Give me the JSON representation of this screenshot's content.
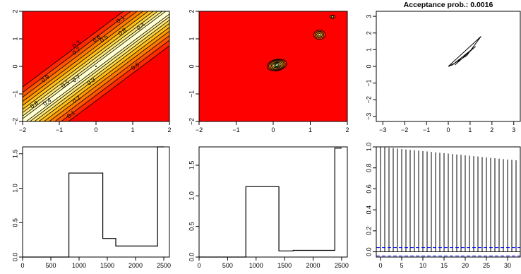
{
  "chart_data": [
    {
      "type": "contour",
      "panel": "top-left",
      "xlim": [
        -2,
        2
      ],
      "ylim": [
        -2,
        2
      ],
      "x_ticks": [
        "−2",
        "−1",
        "0",
        "1",
        "2"
      ],
      "y_ticks": [
        "−2",
        "−1",
        "0",
        "1",
        "2"
      ],
      "levels_upper": [
        "0.1",
        "0.3",
        "0.6",
        "0.5",
        "0.8",
        "0.4"
      ],
      "levels_band_upper": [
        "0.7"
      ],
      "levels_band_lower": [
        "0.9",
        "0.6",
        "0.7"
      ],
      "levels_lower": [
        "0.8",
        "0.4",
        "0.5",
        "0.2",
        "0.3",
        "0.1"
      ],
      "center_point": [
        0,
        0
      ]
    },
    {
      "type": "contour",
      "panel": "top-middle",
      "xlim": [
        -2,
        2
      ],
      "ylim": [
        -2,
        2
      ],
      "x_ticks": [
        "−2",
        "−1",
        "0",
        "1",
        "2"
      ],
      "y_ticks": [
        "−2",
        "−1",
        "0",
        "1",
        "2"
      ],
      "modes": [
        {
          "x": 0.1,
          "y": 0.05
        },
        {
          "x": 1.25,
          "y": 1.15
        },
        {
          "x": 1.6,
          "y": 1.8
        }
      ]
    },
    {
      "type": "line",
      "panel": "top-right",
      "title": "Acceptance prob.:  0.0016",
      "xlim": [
        -3.3,
        3.3
      ],
      "ylim": [
        -3.3,
        3.3
      ],
      "x_ticks": [
        "−3",
        "−2",
        "−1",
        "0",
        "1",
        "2",
        "3"
      ],
      "y_ticks": [
        "−3",
        "−2",
        "−1",
        "0",
        "1",
        "2",
        "3"
      ],
      "path": [
        [
          0.0,
          0.0
        ],
        [
          0.3,
          0.2
        ],
        [
          0.85,
          0.65
        ],
        [
          1.5,
          1.8
        ],
        [
          0.0,
          0.0
        ],
        [
          0.2,
          0.1
        ],
        [
          1.25,
          1.2
        ],
        [
          0.3,
          0.08
        ]
      ]
    },
    {
      "type": "step",
      "panel": "bottom-left",
      "xlim": [
        0,
        2600
      ],
      "ylim": [
        0,
        1.6
      ],
      "x_ticks": [
        "0",
        "500",
        "1000",
        "1500",
        "2000",
        "2500"
      ],
      "y_ticks": [
        "0.0",
        "0.5",
        "1.0",
        "1.5"
      ],
      "x": [
        0,
        820,
        1420,
        1650,
        2390,
        2500
      ],
      "y": [
        0.0,
        1.22,
        0.27,
        0.16,
        1.6,
        1.6
      ]
    },
    {
      "type": "step",
      "panel": "bottom-middle",
      "xlim": [
        0,
        2600
      ],
      "ylim": [
        0,
        1.8
      ],
      "x_ticks": [
        "0",
        "500",
        "1000",
        "1500",
        "2000",
        "2500"
      ],
      "y_ticks": [
        "0.0",
        "0.5",
        "1.0",
        "1.5"
      ],
      "x": [
        0,
        820,
        1400,
        1650,
        2380,
        2500
      ],
      "y": [
        0.0,
        1.15,
        0.1,
        0.11,
        1.78,
        1.78
      ]
    },
    {
      "type": "bar",
      "panel": "bottom-right",
      "xlim": [
        -1,
        33
      ],
      "ylim": [
        -0.05,
        1.0
      ],
      "x_ticks": [
        "0",
        "5",
        "10",
        "15",
        "20",
        "25",
        "30"
      ],
      "y_ticks": [
        "0.0",
        "0.2",
        "0.4",
        "0.6",
        "0.8",
        "1.0"
      ],
      "lags": [
        0,
        1,
        2,
        3,
        4,
        5,
        6,
        7,
        8,
        9,
        10,
        11,
        12,
        13,
        14,
        15,
        16,
        17,
        18,
        19,
        20,
        21,
        22,
        23,
        24,
        25,
        26,
        27,
        28,
        29,
        30,
        31,
        32
      ],
      "values": [
        1.0,
        0.996,
        0.992,
        0.988,
        0.984,
        0.98,
        0.976,
        0.972,
        0.968,
        0.964,
        0.96,
        0.956,
        0.952,
        0.948,
        0.944,
        0.94,
        0.936,
        0.932,
        0.928,
        0.924,
        0.92,
        0.916,
        0.912,
        0.908,
        0.904,
        0.9,
        0.896,
        0.892,
        0.888,
        0.884,
        0.88,
        0.876,
        0.872
      ],
      "confidence_band": [
        -0.04,
        0.04
      ],
      "band_color": "#0000ff"
    }
  ]
}
